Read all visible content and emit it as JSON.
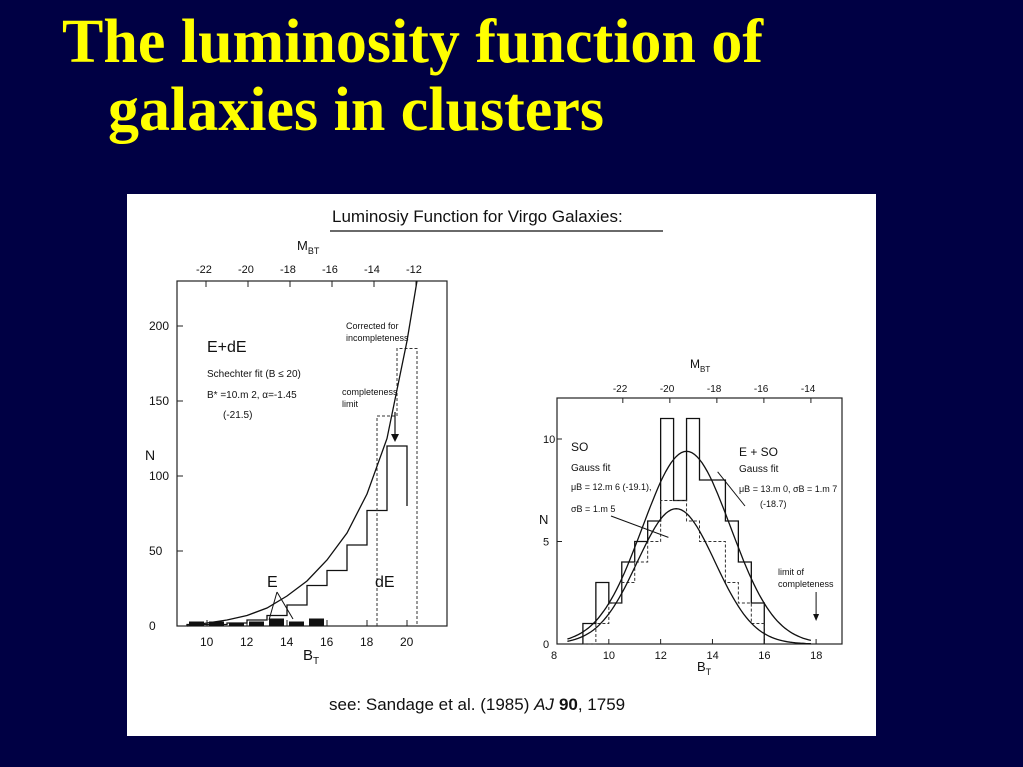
{
  "slide": {
    "title_line1": "The luminosity function of",
    "title_line2": "galaxies in clusters"
  },
  "figure": {
    "heading": "Luminosiy Function for Virgo Galaxies:",
    "citation_pre": "see: Sandage et al. (1985) ",
    "citation_journal": "AJ",
    "citation_volume": "90",
    "citation_page": ", 1759"
  },
  "colors": {
    "background": "#000044",
    "title": "#ffff00",
    "panel": "#ffffff"
  },
  "chart_data": [
    {
      "type": "bar",
      "xlabel": "B",
      "xlabel_sub": "T",
      "ylabel": "N",
      "top_axis_label": "M",
      "top_axis_sub": "BT",
      "xlim": [
        8.5,
        22
      ],
      "ylim": [
        0,
        230
      ],
      "x_ticks": [
        10,
        12,
        14,
        16,
        18,
        20
      ],
      "y_ticks": [
        0,
        50,
        100,
        150,
        200
      ],
      "top_ticks": [
        -22,
        -20,
        -18,
        -16,
        -14,
        -12
      ],
      "labels": {
        "class": "E+dE",
        "fit_line1": "Schechter fit (B ≤ 20)",
        "fit_line2": "B* =10.m 2, α=-1.45",
        "fit_line3": "(-21.5)",
        "corrected": "Corrected for",
        "corrected2": "incompleteness",
        "completeness": "completeness",
        "completeness2": "limit",
        "e_label": "E",
        "de_label": "dE"
      },
      "series": [
        {
          "name": "E+dE",
          "bin_edges": [
            9,
            10,
            11,
            12,
            13,
            14,
            15,
            16,
            17,
            18,
            19,
            20
          ],
          "values": [
            1,
            1,
            2,
            4,
            7,
            14,
            27,
            37,
            54,
            77,
            120,
            80
          ]
        },
        {
          "name": "E",
          "bin_edges": [
            9,
            10,
            11,
            12,
            13,
            14,
            15,
            16
          ],
          "values": [
            3,
            3,
            2,
            3,
            5,
            3,
            5
          ]
        },
        {
          "name": "Corrected for incompleteness",
          "bin_edges": [
            18.5,
            19.5,
            20.5
          ],
          "values": [
            140,
            185
          ]
        },
        {
          "name": "Schechter fit",
          "x": [
            9,
            10,
            11,
            12,
            13,
            14,
            15,
            16,
            17,
            18,
            19,
            20,
            20.5
          ],
          "y": [
            0,
            2,
            4,
            7,
            12,
            20,
            30,
            44,
            62,
            88,
            125,
            190,
            230
          ]
        }
      ],
      "completeness_limit": 19
    },
    {
      "type": "bar",
      "xlabel": "B",
      "xlabel_sub": "T",
      "ylabel": "N",
      "top_axis_label": "M",
      "top_axis_sub": "BT",
      "xlim": [
        8,
        19
      ],
      "ylim": [
        0,
        12
      ],
      "x_ticks": [
        8,
        10,
        12,
        14,
        16,
        18
      ],
      "y_ticks": [
        0,
        5,
        10
      ],
      "top_ticks": [
        -22,
        -20,
        -18,
        -16,
        -14
      ],
      "labels": {
        "so": "SO",
        "so_fit": "Gauss fit",
        "so_mu": "μB = 12.m 6 (-19.1),",
        "so_sigma": "σB = 1.m 5",
        "eso": "E + SO",
        "eso_fit": "Gauss fit",
        "eso_mu": "μB = 13.m 0, σB = 1.m 7",
        "eso_abs": "(-18.7)",
        "limit": "limit of",
        "limit2": "completeness"
      },
      "series": [
        {
          "name": "E + SO",
          "bin_edges": [
            9,
            9.5,
            10,
            10.5,
            11,
            11.5,
            12,
            12.5,
            13,
            13.5,
            14,
            14.5,
            15,
            15.5,
            16
          ],
          "values": [
            1,
            3,
            2,
            4,
            5,
            6,
            11,
            7,
            11,
            8,
            8,
            6,
            4,
            2
          ]
        },
        {
          "name": "SO",
          "bin_edges": [
            9,
            9.5,
            10,
            10.5,
            11,
            11.5,
            12,
            12.5,
            13,
            13.5,
            14,
            14.5,
            15,
            15.5,
            16
          ],
          "values": [
            0,
            1,
            2,
            3,
            4,
            5,
            7,
            7,
            6,
            5,
            5,
            3,
            2,
            1
          ]
        },
        {
          "name": "Gauss fit E + SO",
          "mu": 13.0,
          "sigma": 1.7,
          "peak": 9.4
        },
        {
          "name": "Gauss fit SO",
          "mu": 12.6,
          "sigma": 1.5,
          "peak": 6.6
        }
      ],
      "completeness_limit": 18
    }
  ]
}
